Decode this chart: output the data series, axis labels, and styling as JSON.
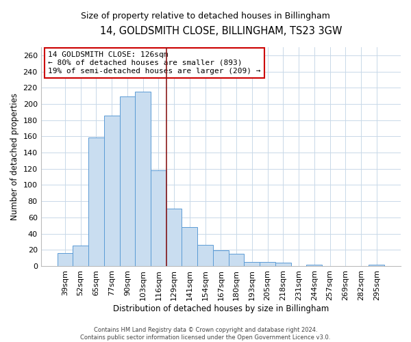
{
  "title": "14, GOLDSMITH CLOSE, BILLINGHAM, TS23 3GW",
  "subtitle": "Size of property relative to detached houses in Billingham",
  "xlabel": "Distribution of detached houses by size in Billingham",
  "ylabel": "Number of detached properties",
  "bar_labels": [
    "39sqm",
    "52sqm",
    "65sqm",
    "77sqm",
    "90sqm",
    "103sqm",
    "116sqm",
    "129sqm",
    "141sqm",
    "154sqm",
    "167sqm",
    "180sqm",
    "193sqm",
    "205sqm",
    "218sqm",
    "231sqm",
    "244sqm",
    "257sqm",
    "269sqm",
    "282sqm",
    "295sqm"
  ],
  "bar_values": [
    16,
    25,
    159,
    186,
    209,
    215,
    118,
    71,
    48,
    26,
    19,
    15,
    5,
    5,
    4,
    0,
    2,
    0,
    0,
    0,
    2
  ],
  "bar_color": "#c9ddf0",
  "bar_edge_color": "#5b9bd5",
  "ylim": [
    0,
    270
  ],
  "yticks": [
    0,
    20,
    40,
    60,
    80,
    100,
    120,
    140,
    160,
    180,
    200,
    220,
    240,
    260
  ],
  "vline_color": "#8b1a1a",
  "annotation_line1": "14 GOLDSMITH CLOSE: 126sqm",
  "annotation_line2": "← 80% of detached houses are smaller (893)",
  "annotation_line3": "19% of semi-detached houses are larger (209) →",
  "annotation_box_edge": "#cc0000",
  "footer_line1": "Contains HM Land Registry data © Crown copyright and database right 2024.",
  "footer_line2": "Contains public sector information licensed under the Open Government Licence v3.0.",
  "bg_color": "#ffffff",
  "grid_color": "#c8d8e8"
}
